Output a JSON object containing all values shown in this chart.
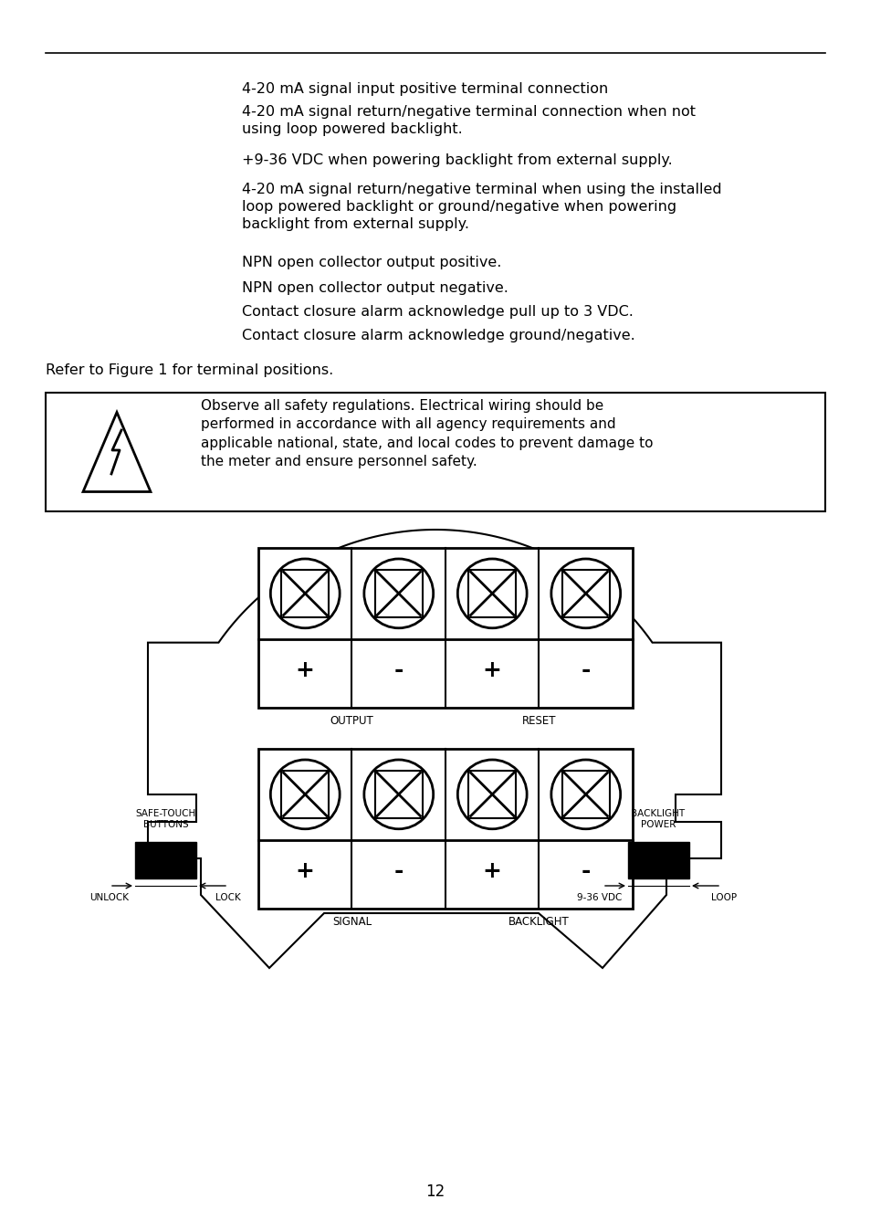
{
  "bg_color": "#ffffff",
  "text_color": "#000000",
  "page_number": "12",
  "bullet_texts": [
    "4-20 mA signal input positive terminal connection",
    "4-20 mA signal return/negative terminal connection when not\nusing loop powered backlight.",
    "+9-36 VDC when powering backlight from external supply.",
    "4-20 mA signal return/negative terminal when using the installed\nloop powered backlight or ground/negative when powering\nbacklight from external supply.",
    "NPN open collector output positive.",
    "NPN open collector output negative.",
    "Contact closure alarm acknowledge pull up to 3 VDC.",
    "Contact closure alarm acknowledge ground/negative."
  ],
  "refer_text": "Refer to Figure 1 for terminal positions.",
  "warning_text": "Observe all safety regulations. Electrical wiring should be\nperformed in accordance with all agency requirements and\napplicable national, state, and local codes to prevent damage to\nthe meter and ensure personnel safety.",
  "font_size_body": 11.5,
  "font_size_refer": 11.5,
  "font_size_warning": 11.0,
  "font_size_page": 12
}
